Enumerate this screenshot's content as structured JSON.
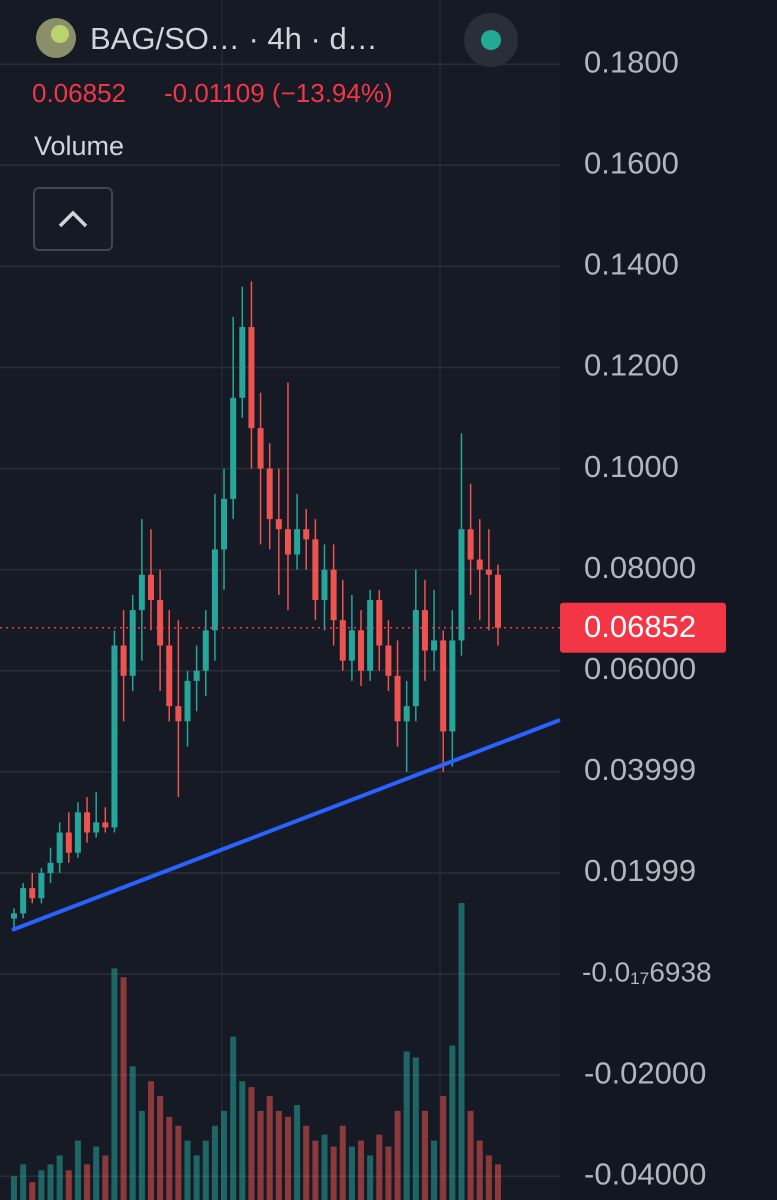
{
  "header": {
    "title": "BAG/SO… · 4h · d…",
    "change": "-0.01109 (−13.94%)",
    "indicator": "Volume"
  },
  "chart_data": {
    "type": "candlestick",
    "open": [
      0.011,
      0.012,
      0.017,
      0.015,
      0.02,
      0.022,
      0.028,
      0.024,
      0.032,
      0.028,
      0.03,
      0.029,
      0.065,
      0.059,
      0.072,
      0.079,
      0.074,
      0.065,
      0.053,
      0.05,
      0.058,
      0.06,
      0.068,
      0.084,
      0.094,
      0.114,
      0.128,
      0.108,
      0.1,
      0.09,
      0.088,
      0.083,
      0.088,
      0.086,
      0.074,
      0.08,
      0.07,
      0.062,
      0.068,
      0.06,
      0.074,
      0.065,
      0.059,
      0.05,
      0.053,
      0.072,
      0.064,
      0.066,
      0.048,
      0.066,
      0.088,
      0.082,
      0.08,
      0.079
    ],
    "high": [
      0.013,
      0.018,
      0.02,
      0.021,
      0.025,
      0.03,
      0.032,
      0.034,
      0.035,
      0.036,
      0.033,
      0.068,
      0.072,
      0.075,
      0.09,
      0.088,
      0.08,
      0.072,
      0.07,
      0.06,
      0.065,
      0.072,
      0.095,
      0.1,
      0.13,
      0.136,
      0.137,
      0.115,
      0.105,
      0.1,
      0.117,
      0.095,
      0.092,
      0.09,
      0.085,
      0.085,
      0.078,
      0.075,
      0.072,
      0.076,
      0.076,
      0.07,
      0.066,
      0.058,
      0.08,
      0.078,
      0.076,
      0.068,
      0.072,
      0.107,
      0.097,
      0.09,
      0.088,
      0.081
    ],
    "low": [
      0.009,
      0.011,
      0.014,
      0.014,
      0.018,
      0.02,
      0.022,
      0.023,
      0.026,
      0.027,
      0.028,
      0.028,
      0.05,
      0.056,
      0.062,
      0.068,
      0.056,
      0.05,
      0.035,
      0.045,
      0.052,
      0.055,
      0.062,
      0.076,
      0.09,
      0.11,
      0.1,
      0.085,
      0.084,
      0.075,
      0.072,
      0.08,
      0.08,
      0.07,
      0.068,
      0.065,
      0.06,
      0.058,
      0.057,
      0.058,
      0.06,
      0.056,
      0.045,
      0.04,
      0.05,
      0.058,
      0.06,
      0.04,
      0.041,
      0.063,
      0.075,
      0.07,
      0.068,
      0.065
    ],
    "close": [
      0.012,
      0.017,
      0.015,
      0.02,
      0.022,
      0.028,
      0.024,
      0.032,
      0.028,
      0.03,
      0.029,
      0.065,
      0.059,
      0.072,
      0.079,
      0.074,
      0.065,
      0.053,
      0.05,
      0.058,
      0.06,
      0.068,
      0.084,
      0.094,
      0.114,
      0.128,
      0.108,
      0.1,
      0.09,
      0.088,
      0.083,
      0.088,
      0.086,
      0.074,
      0.08,
      0.07,
      0.062,
      0.068,
      0.06,
      0.074,
      0.065,
      0.059,
      0.05,
      0.053,
      0.072,
      0.064,
      0.066,
      0.048,
      0.066,
      0.088,
      0.082,
      0.08,
      0.079,
      0.06852
    ],
    "volume": [
      8,
      12,
      6,
      10,
      12,
      15,
      10,
      20,
      12,
      18,
      15,
      78,
      75,
      45,
      30,
      40,
      35,
      28,
      25,
      20,
      15,
      20,
      25,
      30,
      55,
      40,
      38,
      30,
      35,
      30,
      28,
      32,
      25,
      20,
      22,
      18,
      25,
      18,
      20,
      15,
      22,
      18,
      30,
      50,
      48,
      30,
      20,
      35,
      52,
      100,
      30,
      20,
      15,
      12
    ],
    "last_price": 0.06852,
    "up_color": "#26a69a",
    "down_color": "#ef5350",
    "ylim": [
      -0.0447,
      0.1927
    ],
    "yticks": [
      {
        "value": 0.18,
        "label": "0.1800"
      },
      {
        "value": 0.16,
        "label": "0.1600"
      },
      {
        "value": 0.14,
        "label": "0.1400"
      },
      {
        "value": 0.12,
        "label": "0.1200"
      },
      {
        "value": 0.1,
        "label": "0.1000"
      },
      {
        "value": 0.08,
        "label": "0.08000"
      },
      {
        "value": 0.06,
        "label": "0.06000"
      },
      0.03999,
      0.01999,
      {
        "value": -6.938e-18,
        "label": "-0.0₁₇6938"
      },
      {
        "value": -0.02,
        "label": "-0.02000"
      },
      {
        "value": -0.04,
        "label": "-0.04000"
      }
    ],
    "grid": true
  }
}
